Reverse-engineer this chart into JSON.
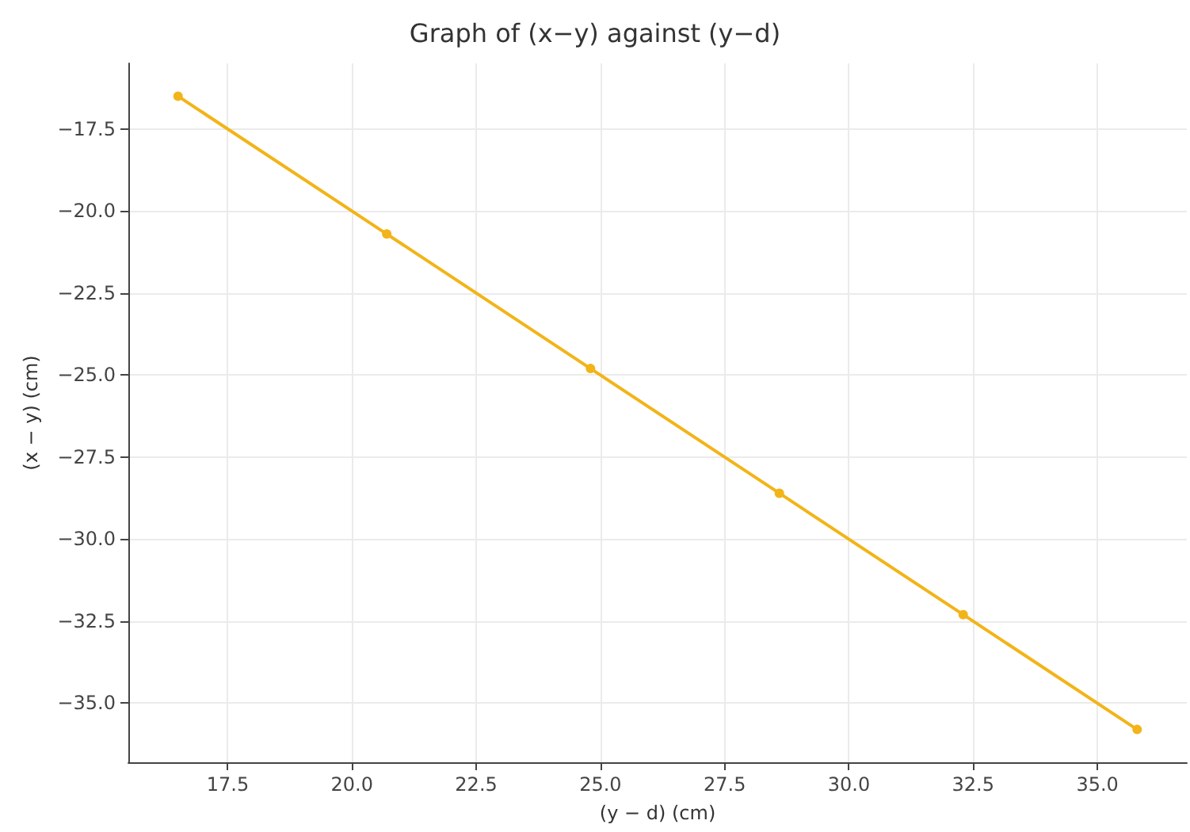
{
  "chart_data": {
    "type": "line",
    "title": "Graph of (x−y) against (y−d)",
    "xlabel": "(y − d) (cm)",
    "ylabel": "(x − y) (cm)",
    "x": [
      16.5,
      20.7,
      24.8,
      28.6,
      32.3,
      35.8
    ],
    "series": [
      {
        "color": "#f2b418",
        "values": [
          -16.5,
          -20.7,
          -24.8,
          -28.6,
          -32.3,
          -35.8
        ]
      }
    ],
    "xlim": [
      15.5,
      36.8
    ],
    "xticks": [
      17.5,
      {
        "value": 20,
        "label": "20.0"
      },
      22.5,
      {
        "value": 25,
        "label": "25.0"
      },
      27.5,
      {
        "value": 30,
        "label": "30.0"
      },
      32.5,
      {
        "value": 35,
        "label": "35.0"
      }
    ],
    "ylim": [
      -36.8,
      -15.5
    ],
    "yticks": [
      {
        "value": -17.5,
        "label": "−17.5"
      },
      {
        "value": -20,
        "label": "−20.0"
      },
      {
        "value": -22.5,
        "label": "−22.5"
      },
      {
        "value": -25,
        "label": "−25.0"
      },
      {
        "value": -27.5,
        "label": "−27.5"
      },
      {
        "value": -30,
        "label": "−30.0"
      },
      {
        "value": -32.5,
        "label": "−32.5"
      },
      {
        "value": -35,
        "label": "−35.0"
      }
    ],
    "grid": true,
    "marker": "circle",
    "line_style": "solid"
  }
}
